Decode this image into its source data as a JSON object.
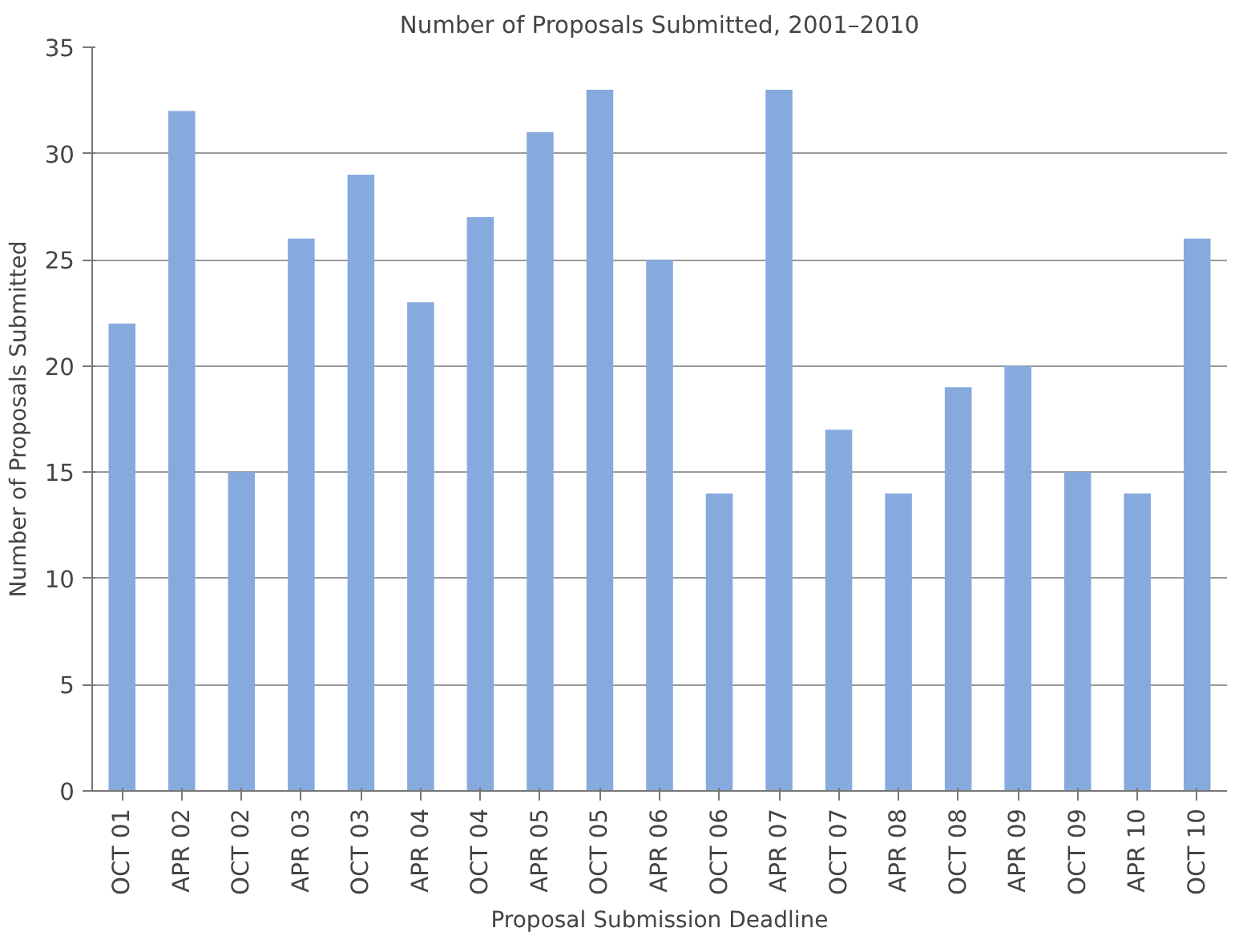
{
  "chart_data": {
    "type": "bar",
    "title": "Number of Proposals Submitted, 2001–2010",
    "xlabel": "Proposal Submission Deadline",
    "ylabel": "Number of Proposals Submitted",
    "categories": [
      "OCT 01",
      "APR 02",
      "OCT 02",
      "APR 03",
      "OCT 03",
      "APR 04",
      "OCT 04",
      "APR 05",
      "OCT 05",
      "APR 06",
      "OCT 06",
      "APR 07",
      "OCT 07",
      "APR 08",
      "OCT 08",
      "APR 09",
      "OCT 09",
      "APR 10",
      "OCT 10"
    ],
    "values": [
      22,
      32,
      15,
      26,
      29,
      23,
      27,
      31,
      33,
      25,
      14,
      33,
      17,
      14,
      19,
      20,
      15,
      14,
      26
    ],
    "color": "#86aade",
    "ylim": [
      0,
      35
    ],
    "yticks": [
      0,
      5,
      10,
      15,
      20,
      25,
      30,
      35
    ],
    "grid": "y"
  }
}
